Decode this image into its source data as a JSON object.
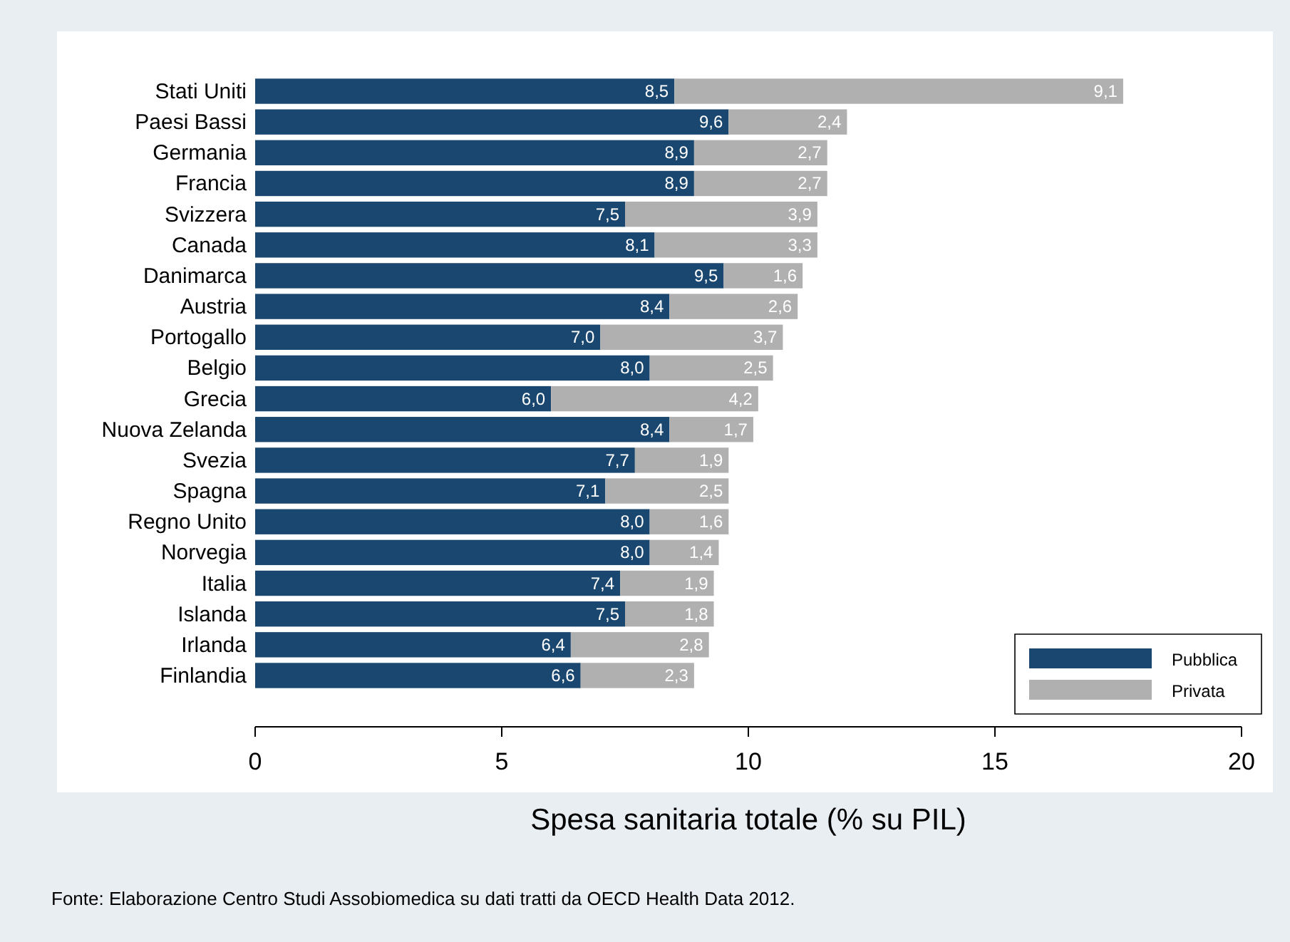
{
  "chart_data": {
    "type": "bar",
    "orientation": "horizontal",
    "stacked": true,
    "categories": [
      "Stati Uniti",
      "Paesi Bassi",
      "Germania",
      "Francia",
      "Svizzera",
      "Canada",
      "Danimarca",
      "Austria",
      "Portogallo",
      "Belgio",
      "Grecia",
      "Nuova Zelanda",
      "Svezia",
      "Spagna",
      "Regno Unito",
      "Norvegia",
      "Italia",
      "Islanda",
      "Irlanda",
      "Finlandia"
    ],
    "series": [
      {
        "name": "Pubblica",
        "color": "#1a476f",
        "values": [
          8.5,
          9.6,
          8.9,
          8.9,
          7.5,
          8.1,
          9.5,
          8.4,
          7.0,
          8.0,
          6.0,
          8.4,
          7.7,
          7.1,
          8.0,
          8.0,
          7.4,
          7.5,
          6.4,
          6.6
        ],
        "value_labels": [
          "8,5",
          "9,6",
          "8,9",
          "8,9",
          "7,5",
          "8,1",
          "9,5",
          "8,4",
          "7,0",
          "8,0",
          "6,0",
          "8,4",
          "7,7",
          "7,1",
          "8,0",
          "8,0",
          "7,4",
          "7,5",
          "6,4",
          "6,6"
        ]
      },
      {
        "name": "Privata",
        "color": "#b0b0b0",
        "values": [
          9.1,
          2.4,
          2.7,
          2.7,
          3.9,
          3.3,
          1.6,
          2.6,
          3.7,
          2.5,
          4.2,
          1.7,
          1.9,
          2.5,
          1.6,
          1.4,
          1.9,
          1.8,
          2.8,
          2.3
        ],
        "value_labels": [
          "9,1",
          "2,4",
          "2,7",
          "2,7",
          "3,9",
          "3,3",
          "1,6",
          "2,6",
          "3,7",
          "2,5",
          "4,2",
          "1,7",
          "1,9",
          "2,5",
          "1,6",
          "1,4",
          "1,9",
          "1,8",
          "2,8",
          "2,3"
        ]
      }
    ],
    "xlim": [
      0,
      20
    ],
    "xticks": [
      0,
      5,
      10,
      15,
      20
    ],
    "xlabel": "Spesa sanitaria totale (% su PIL)",
    "legend": "bottom right",
    "grid": false,
    "annotations": [
      "Fonte: Elaborazione Centro Studi Assobiomedica su dati tratti da OECD Health Data 2012."
    ]
  }
}
